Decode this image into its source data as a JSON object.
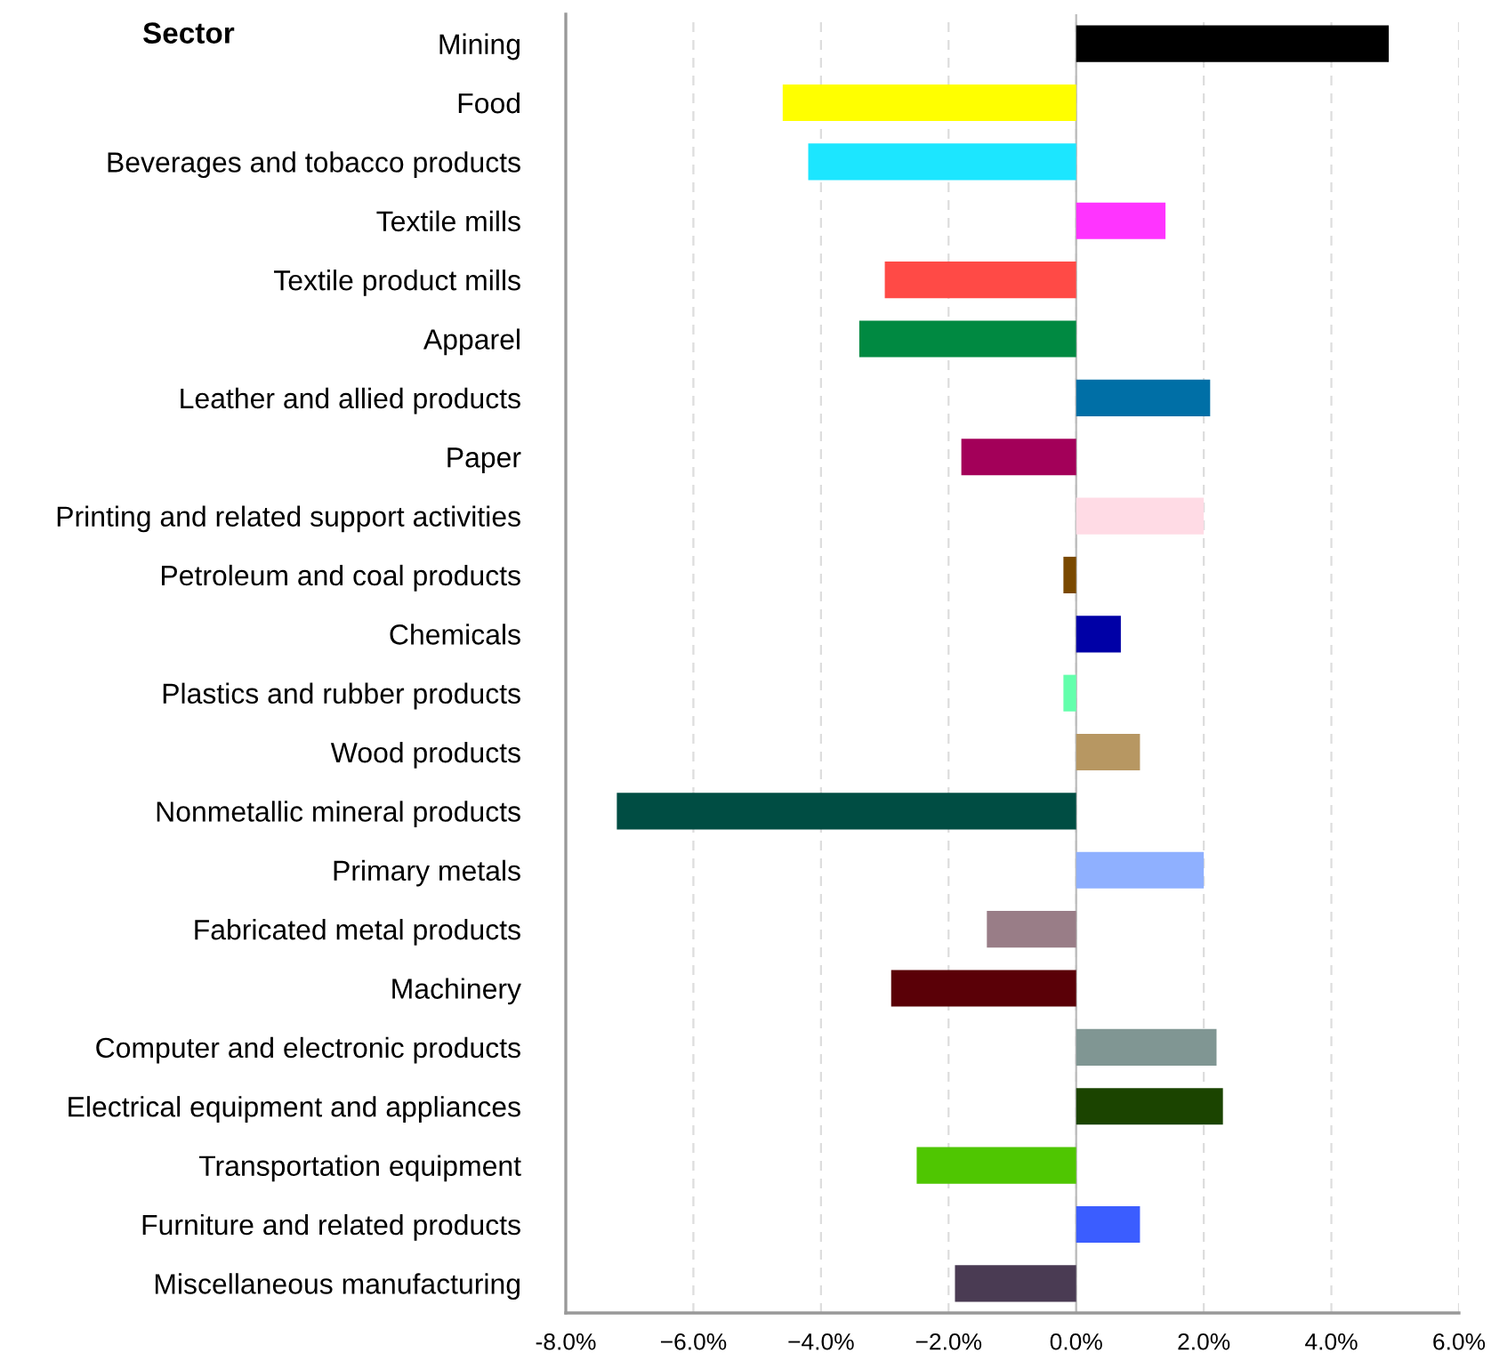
{
  "chart_data": {
    "type": "bar",
    "orientation": "horizontal",
    "ylabel": "Sector",
    "categories": [
      "Mining",
      "Food",
      "Beverages and tobacco products",
      "Textile mills",
      "Textile product mills",
      "Apparel",
      "Leather and allied products",
      "Paper",
      "Printing and related support activities",
      "Petroleum and coal products",
      "Chemicals",
      "Plastics and rubber products",
      "Wood products",
      "Nonmetallic mineral products",
      "Primary metals",
      "Fabricated metal products",
      "Machinery",
      "Computer and electronic products",
      "Electrical equipment and appliances",
      "Transportation equipment",
      "Furniture and related products",
      "Miscellaneous manufacturing"
    ],
    "values": [
      4.9,
      -4.6,
      -4.2,
      1.4,
      -3.0,
      -3.4,
      2.1,
      -1.8,
      2.0,
      -0.2,
      0.7,
      -0.2,
      1.0,
      -7.2,
      2.0,
      -1.4,
      -2.9,
      2.2,
      2.3,
      -2.5,
      1.0,
      -1.9
    ],
    "colors": [
      "#000000",
      "#ffff00",
      "#1ce6ff",
      "#ff34ff",
      "#ff4a46",
      "#008941",
      "#006fa6",
      "#a30059",
      "#ffdbe5",
      "#7a4900",
      "#0000a6",
      "#63ffac",
      "#b79762",
      "#004d43",
      "#8fb0ff",
      "#997d87",
      "#5a0007",
      "#809693",
      "#1b4400",
      "#4fc601",
      "#3b5dff",
      "#4a3b53"
    ],
    "xlim": [
      -8,
      6
    ],
    "xticks": [
      {
        "value": -8,
        "label": "-8.0%"
      },
      {
        "value": -6,
        "label": "−6.0%"
      },
      {
        "value": -4,
        "label": "−4.0%"
      },
      {
        "value": -2,
        "label": "−2.0%"
      },
      {
        "value": 0,
        "label": "0.0%"
      },
      {
        "value": 2,
        "label": "2.0%"
      },
      {
        "value": 4,
        "label": "4.0%"
      },
      {
        "value": 6,
        "label": "6.0%"
      }
    ],
    "grid": "x",
    "legend": false
  }
}
